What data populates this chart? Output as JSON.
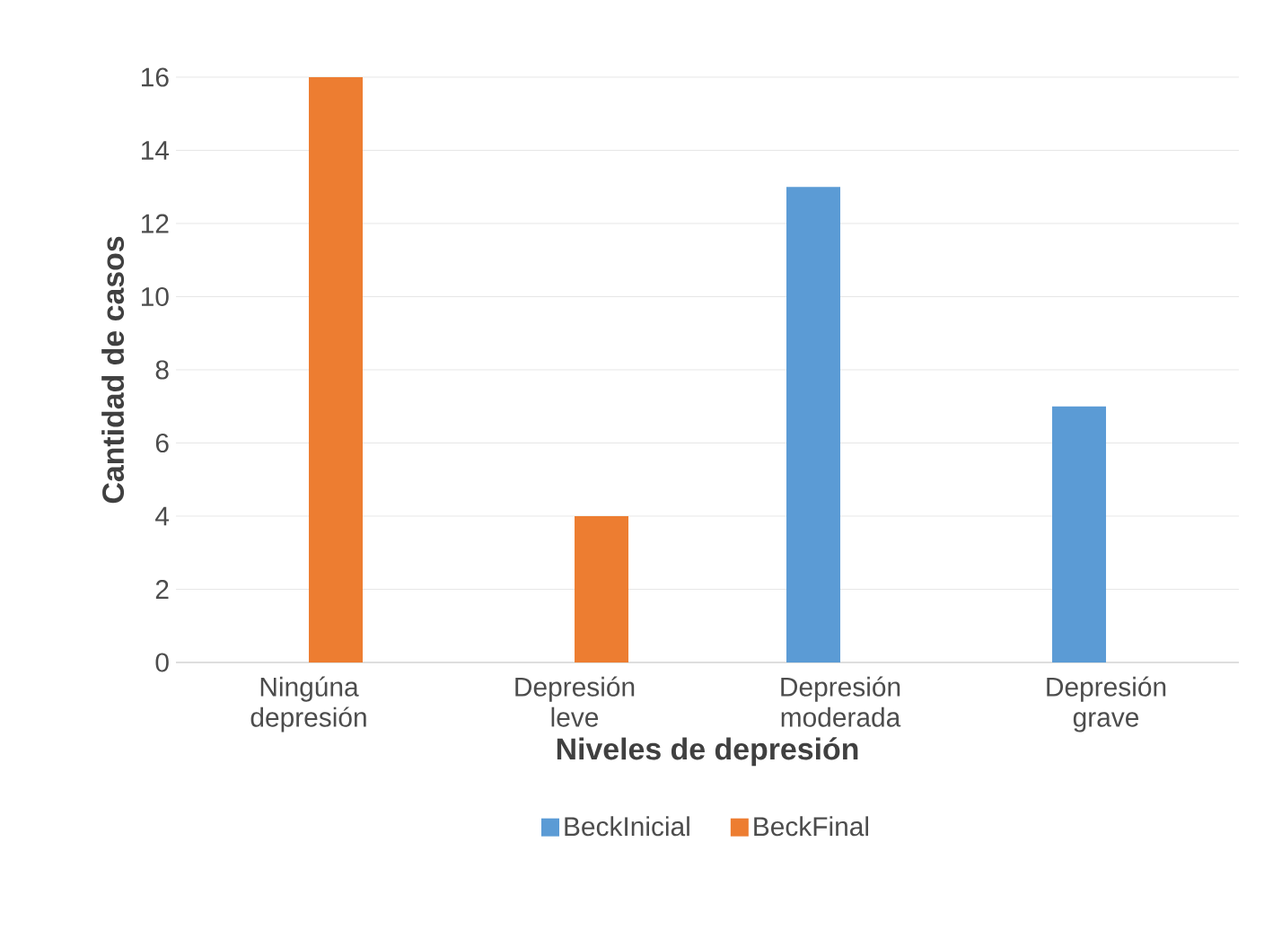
{
  "chart_data": {
    "type": "bar",
    "xlabel": "Niveles de depresión",
    "ylabel": "Cantidad de casos",
    "categories": [
      "Ningúna depresión",
      "Depresión leve",
      "Depresión moderada",
      "Depresión grave"
    ],
    "series": [
      {
        "name": "BeckInicial",
        "color": "#5b9bd5",
        "values": [
          0,
          0,
          13,
          7
        ]
      },
      {
        "name": "BeckFinal",
        "color": "#ed7d31",
        "values": [
          16,
          4,
          0,
          0
        ]
      }
    ],
    "ylim": [
      0,
      16
    ],
    "yticks": [
      0,
      2,
      4,
      6,
      8,
      10,
      12,
      14,
      16
    ],
    "grid": "y",
    "legend": "bottom"
  }
}
